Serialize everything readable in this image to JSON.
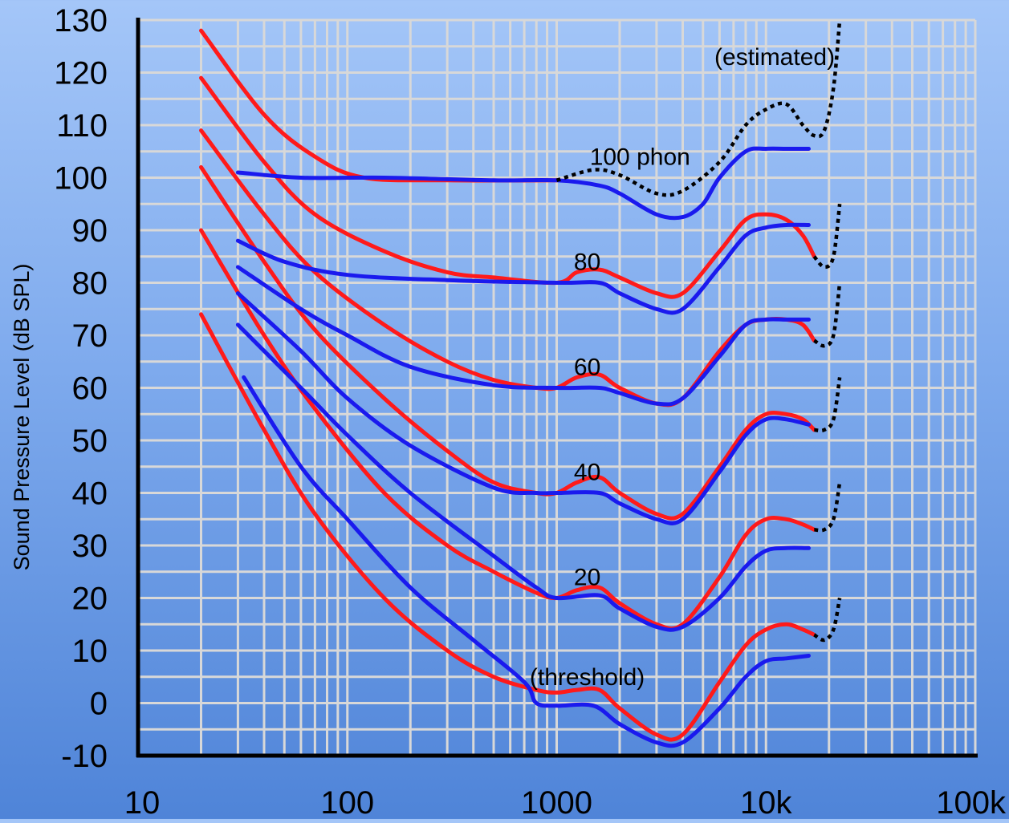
{
  "chart_data": {
    "type": "line",
    "title": "",
    "xlabel": "",
    "ylabel": "Sound Pressure Level (dB SPL)",
    "x_scale": "log",
    "xlim": [
      10,
      100000
    ],
    "ylim": [
      -10,
      130
    ],
    "grid": true,
    "x_tick_labels": [
      {
        "x": 10,
        "label": "10"
      },
      {
        "x": 100,
        "label": "100"
      },
      {
        "x": 1000,
        "label": "1000"
      },
      {
        "x": 10000,
        "label": "10k"
      },
      {
        "x": 100000,
        "label": "100k"
      }
    ],
    "y_ticks": [
      -10,
      0,
      10,
      20,
      30,
      40,
      50,
      60,
      70,
      80,
      90,
      100,
      110,
      120,
      130
    ],
    "colors": {
      "red_series": "#ff1a1a",
      "blue_series": "#1a1aee",
      "estimated": "#000000",
      "grid": "#d8d8d8"
    },
    "annotations": [
      {
        "text": "(estimated)",
        "x": 11000,
        "y": 123
      },
      {
        "text": "100 phon",
        "x": 2500,
        "y": 104
      },
      {
        "text": "80",
        "x": 1400,
        "y": 84
      },
      {
        "text": "60",
        "x": 1400,
        "y": 64
      },
      {
        "text": "40",
        "x": 1400,
        "y": 44
      },
      {
        "text": "20",
        "x": 1400,
        "y": 24
      },
      {
        "text": "(threshold)",
        "x": 1400,
        "y": 5
      }
    ],
    "series": [
      {
        "color": "red",
        "points": [
          [
            20,
            128
          ],
          [
            40,
            112
          ],
          [
            70,
            104
          ],
          [
            120,
            100
          ],
          [
            300,
            99.5
          ],
          [
            1000,
            99.5
          ]
        ]
      },
      {
        "color": "red",
        "points": [
          [
            20,
            119
          ],
          [
            40,
            103
          ],
          [
            70,
            93
          ],
          [
            150,
            86
          ],
          [
            300,
            82
          ],
          [
            500,
            81
          ],
          [
            1000,
            80
          ],
          [
            1250,
            82
          ],
          [
            1600,
            82.5
          ],
          [
            2000,
            81
          ],
          [
            3000,
            78
          ],
          [
            4000,
            78
          ],
          [
            6000,
            86
          ],
          [
            8000,
            92
          ],
          [
            10000,
            93
          ],
          [
            12500,
            92
          ],
          [
            15000,
            89
          ],
          [
            17000,
            85
          ]
        ]
      },
      {
        "color": "red",
        "points": [
          [
            20,
            109
          ],
          [
            40,
            93
          ],
          [
            70,
            82
          ],
          [
            150,
            72
          ],
          [
            300,
            65
          ],
          [
            500,
            61.5
          ],
          [
            800,
            60
          ],
          [
            1000,
            60
          ],
          [
            1250,
            62
          ],
          [
            1600,
            62.5
          ],
          [
            2000,
            60
          ],
          [
            3000,
            57
          ],
          [
            4000,
            58
          ],
          [
            6000,
            67
          ],
          [
            8000,
            72
          ],
          [
            10000,
            73
          ],
          [
            12500,
            73
          ],
          [
            15000,
            72
          ],
          [
            17000,
            69
          ]
        ]
      },
      {
        "color": "red",
        "points": [
          [
            20,
            102
          ],
          [
            40,
            84
          ],
          [
            70,
            71
          ],
          [
            150,
            58
          ],
          [
            300,
            48
          ],
          [
            500,
            42
          ],
          [
            800,
            40
          ],
          [
            1000,
            40
          ],
          [
            1250,
            42
          ],
          [
            1600,
            43
          ],
          [
            2000,
            40
          ],
          [
            3000,
            36
          ],
          [
            4000,
            36
          ],
          [
            6000,
            45
          ],
          [
            8000,
            52
          ],
          [
            10000,
            55
          ],
          [
            12500,
            55
          ],
          [
            15000,
            54
          ],
          [
            17000,
            52
          ]
        ]
      },
      {
        "color": "red",
        "points": [
          [
            20,
            90
          ],
          [
            40,
            70
          ],
          [
            70,
            56
          ],
          [
            150,
            40
          ],
          [
            300,
            30
          ],
          [
            500,
            25
          ],
          [
            800,
            21
          ],
          [
            1000,
            20
          ],
          [
            1250,
            21.5
          ],
          [
            1600,
            22
          ],
          [
            2000,
            19
          ],
          [
            3000,
            15
          ],
          [
            4000,
            15
          ],
          [
            6000,
            24
          ],
          [
            8000,
            32
          ],
          [
            10000,
            35
          ],
          [
            12500,
            35
          ],
          [
            15000,
            34
          ],
          [
            17000,
            33
          ]
        ]
      },
      {
        "color": "red",
        "points": [
          [
            20,
            74
          ],
          [
            40,
            52
          ],
          [
            70,
            36
          ],
          [
            150,
            20
          ],
          [
            300,
            10
          ],
          [
            500,
            5
          ],
          [
            800,
            2.5
          ],
          [
            1000,
            2
          ],
          [
            1250,
            2.5
          ],
          [
            1600,
            2.5
          ],
          [
            2000,
            -1
          ],
          [
            3000,
            -6
          ],
          [
            4000,
            -6
          ],
          [
            6000,
            4
          ],
          [
            8000,
            11
          ],
          [
            10000,
            14
          ],
          [
            12500,
            15
          ],
          [
            15000,
            14
          ],
          [
            17000,
            13
          ]
        ]
      },
      {
        "color": "blue",
        "points": [
          [
            30,
            101
          ],
          [
            60,
            100
          ],
          [
            150,
            100
          ],
          [
            500,
            99.5
          ],
          [
            1000,
            99.5
          ],
          [
            1600,
            98.5
          ],
          [
            2000,
            97
          ],
          [
            3000,
            93
          ],
          [
            4000,
            92.5
          ],
          [
            5000,
            95
          ],
          [
            6000,
            100
          ],
          [
            8000,
            105
          ],
          [
            10000,
            105.5
          ],
          [
            12500,
            105.5
          ],
          [
            16000,
            105.5
          ]
        ]
      },
      {
        "color": "blue",
        "points": [
          [
            30,
            88
          ],
          [
            50,
            84
          ],
          [
            100,
            81.5
          ],
          [
            300,
            80.5
          ],
          [
            1000,
            80
          ],
          [
            1600,
            80
          ],
          [
            2000,
            78
          ],
          [
            3000,
            75
          ],
          [
            4000,
            75
          ],
          [
            6000,
            83
          ],
          [
            8000,
            89
          ],
          [
            10000,
            90.5
          ],
          [
            12500,
            91
          ],
          [
            16000,
            91
          ]
        ]
      },
      {
        "color": "blue",
        "points": [
          [
            30,
            83
          ],
          [
            60,
            75
          ],
          [
            100,
            70
          ],
          [
            200,
            64
          ],
          [
            500,
            60.5
          ],
          [
            1000,
            60
          ],
          [
            1600,
            60
          ],
          [
            2000,
            59
          ],
          [
            3000,
            57
          ],
          [
            4000,
            58
          ],
          [
            6000,
            66
          ],
          [
            8000,
            72
          ],
          [
            10000,
            73
          ],
          [
            12500,
            73
          ],
          [
            16000,
            73
          ]
        ]
      },
      {
        "color": "blue",
        "points": [
          [
            30,
            78
          ],
          [
            60,
            67
          ],
          [
            100,
            58
          ],
          [
            200,
            49
          ],
          [
            500,
            41
          ],
          [
            800,
            40
          ],
          [
            1000,
            40
          ],
          [
            1600,
            40
          ],
          [
            2000,
            38
          ],
          [
            3000,
            35
          ],
          [
            4000,
            35
          ],
          [
            6000,
            44
          ],
          [
            8000,
            51
          ],
          [
            10000,
            54
          ],
          [
            12500,
            54
          ],
          [
            16000,
            53
          ]
        ]
      },
      {
        "color": "blue",
        "points": [
          [
            30,
            72
          ],
          [
            60,
            60
          ],
          [
            100,
            51
          ],
          [
            200,
            40
          ],
          [
            500,
            28
          ],
          [
            800,
            22
          ],
          [
            1000,
            20
          ],
          [
            1600,
            20.5
          ],
          [
            2000,
            18
          ],
          [
            3000,
            14.5
          ],
          [
            4000,
            14.5
          ],
          [
            6000,
            20
          ],
          [
            8000,
            26
          ],
          [
            10000,
            29
          ],
          [
            12500,
            29.5
          ],
          [
            16000,
            29.5
          ]
        ]
      },
      {
        "color": "blue",
        "points": [
          [
            32,
            62
          ],
          [
            60,
            45
          ],
          [
            100,
            35
          ],
          [
            200,
            22
          ],
          [
            400,
            12
          ],
          [
            700,
            4
          ],
          [
            800,
            0
          ],
          [
            1000,
            -0.5
          ],
          [
            1500,
            -0.5
          ],
          [
            2000,
            -4
          ],
          [
            3000,
            -7.5
          ],
          [
            4000,
            -7.5
          ],
          [
            6000,
            -1
          ],
          [
            8000,
            5
          ],
          [
            10000,
            8
          ],
          [
            12500,
            8.5
          ],
          [
            16000,
            9
          ]
        ]
      },
      {
        "color": "estimated",
        "points": [
          [
            1000,
            99.5
          ],
          [
            1500,
            101.5
          ],
          [
            2000,
            100.5
          ],
          [
            3000,
            97
          ],
          [
            4000,
            97.5
          ],
          [
            6000,
            103
          ],
          [
            8000,
            110
          ],
          [
            10000,
            113
          ],
          [
            12500,
            114
          ],
          [
            15000,
            110
          ],
          [
            17000,
            108
          ],
          [
            19000,
            109
          ],
          [
            21000,
            117
          ],
          [
            22500,
            130
          ]
        ]
      },
      {
        "color": "estimated",
        "points": [
          [
            17000,
            85
          ],
          [
            19000,
            83
          ],
          [
            21000,
            85
          ],
          [
            22500,
            95
          ]
        ]
      },
      {
        "color": "estimated",
        "points": [
          [
            17000,
            69
          ],
          [
            19000,
            68
          ],
          [
            21000,
            70
          ],
          [
            22500,
            80
          ]
        ]
      },
      {
        "color": "estimated",
        "points": [
          [
            17000,
            52
          ],
          [
            19000,
            52
          ],
          [
            21000,
            54
          ],
          [
            22500,
            62
          ]
        ]
      },
      {
        "color": "estimated",
        "points": [
          [
            17000,
            33
          ],
          [
            19000,
            33
          ],
          [
            21000,
            35
          ],
          [
            22500,
            42
          ]
        ]
      },
      {
        "color": "estimated",
        "points": [
          [
            17000,
            13
          ],
          [
            19000,
            12
          ],
          [
            21000,
            14
          ],
          [
            22500,
            20
          ]
        ]
      }
    ]
  }
}
